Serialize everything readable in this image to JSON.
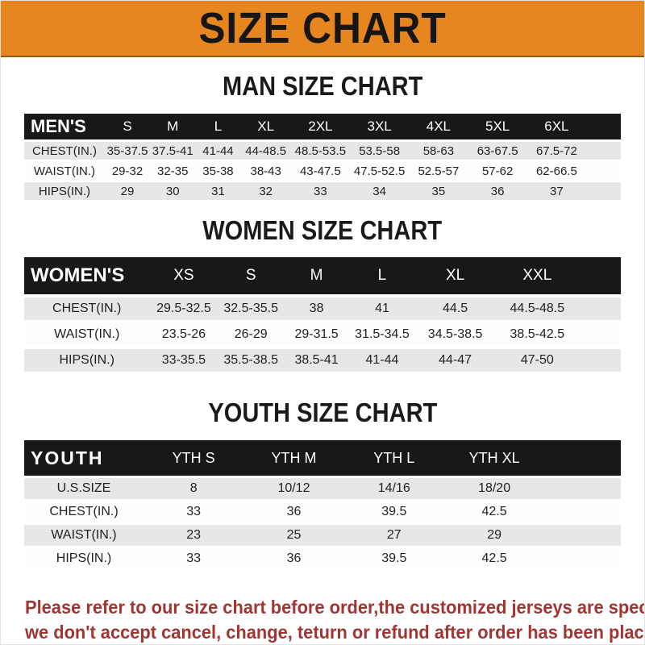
{
  "banner": {
    "title": "SIZE CHART",
    "bg_color": "#E7851E"
  },
  "sections": [
    {
      "heading": "MAN SIZE CHART",
      "header_label": "MEN'S",
      "columns": [
        "S",
        "M",
        "L",
        "XL",
        "2XL",
        "3XL",
        "4XL",
        "5XL",
        "6XL"
      ],
      "rows": [
        {
          "label": "CHEST(IN.)",
          "values": [
            "35-37.5",
            "37.5-41",
            "41-44",
            "44-48.5",
            "48.5-53.5",
            "53.5-58",
            "58-63",
            "63-67.5",
            "67.5-72"
          ]
        },
        {
          "label": "WAIST(IN.)",
          "values": [
            "29-32",
            "32-35",
            "35-38",
            "38-43",
            "43-47.5",
            "47.5-52.5",
            "52.5-57",
            "57-62",
            "62-66.5"
          ]
        },
        {
          "label": "HIPS(IN.)",
          "values": [
            "29",
            "30",
            "31",
            "32",
            "33",
            "34",
            "35",
            "36",
            "37"
          ]
        }
      ]
    },
    {
      "heading": "WOMEN SIZE CHART",
      "header_label": "WOMEN'S",
      "columns": [
        "XS",
        "S",
        "M",
        "L",
        "XL",
        "XXL"
      ],
      "rows": [
        {
          "label": "CHEST(IN.)",
          "values": [
            "29.5-32.5",
            "32.5-35.5",
            "38",
            "41",
            "44.5",
            "44.5-48.5"
          ]
        },
        {
          "label": "WAIST(IN.)",
          "values": [
            "23.5-26",
            "26-29",
            "29-31.5",
            "31.5-34.5",
            "34.5-38.5",
            "38.5-42.5"
          ]
        },
        {
          "label": "HIPS(IN.)",
          "values": [
            "33-35.5",
            "35.5-38.5",
            "38.5-41",
            "41-44",
            "44-47",
            "47-50"
          ]
        }
      ]
    },
    {
      "heading": "YOUTH SIZE CHART",
      "header_label": "YOUTH",
      "columns": [
        "YTH S",
        "YTH M",
        "YTH L",
        "YTH XL"
      ],
      "rows": [
        {
          "label": "U.S.SIZE",
          "values": [
            "8",
            "10/12",
            "14/16",
            "18/20"
          ]
        },
        {
          "label": "CHEST(IN.)",
          "values": [
            "33",
            "36",
            "39.5",
            "42.5"
          ]
        },
        {
          "label": "WAIST(IN.)",
          "values": [
            "23",
            "25",
            "27",
            "29"
          ]
        },
        {
          "label": "HIPS(IN.)",
          "values": [
            "33",
            "36",
            "39.5",
            "42.5"
          ]
        }
      ]
    }
  ],
  "note": {
    "line1": "Please refer to our size chart before order,the customized jerseys are special products,",
    "line2": "we don't accept cancel, change, teturn or refund after order has been placed!",
    "color": "#a13532"
  }
}
